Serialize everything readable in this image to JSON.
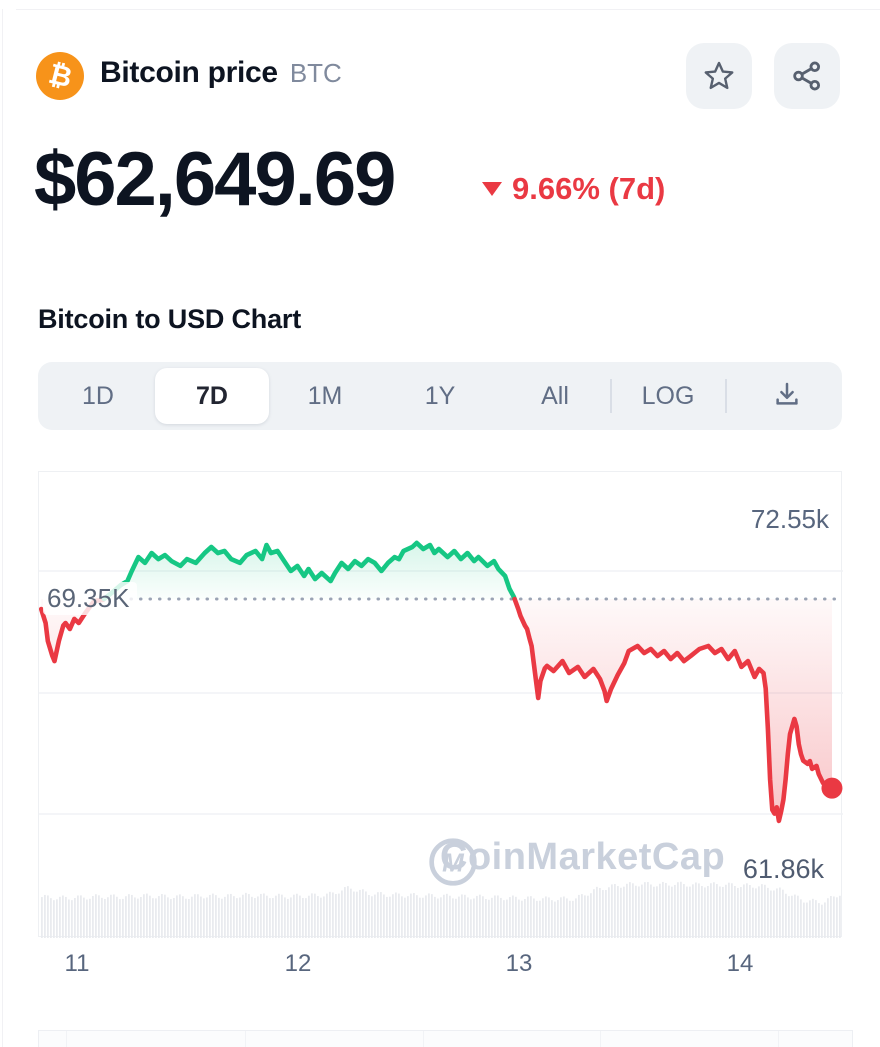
{
  "header": {
    "coin_name": "Bitcoin price",
    "coin_symbol": "BTC",
    "watchlist_icon": "star-outline",
    "share_icon": "share-nodes"
  },
  "price_section": {
    "price": "$62,649.69",
    "change_direction": "down",
    "change_percent": "9.66%",
    "change_period": "(7d)",
    "change_text": "9.66% (7d)",
    "change_color": "#ea3943"
  },
  "chart_section": {
    "title": "Bitcoin to USD Chart",
    "tabs": [
      {
        "label": "1D",
        "selected": false
      },
      {
        "label": "7D",
        "selected": true
      },
      {
        "label": "1M",
        "selected": false
      },
      {
        "label": "1Y",
        "selected": false
      },
      {
        "label": "All",
        "selected": false
      },
      {
        "label": "LOG",
        "selected": false
      }
    ],
    "download_icon": "download"
  },
  "chart_data": {
    "type": "line",
    "title": "Bitcoin to USD Chart (7D)",
    "x_label": "",
    "x_tick_labels": [
      "11",
      "12",
      "13",
      "14"
    ],
    "x_range_days": [
      10.83,
      14.47
    ],
    "y_unit": "USD (thousands)",
    "baseline": {
      "value_k": 69.35,
      "label": "69.35K"
    },
    "range_high": {
      "value_k": 72.55,
      "label": "72.55k"
    },
    "range_low": {
      "value_k": 61.86,
      "label": "61.86k"
    },
    "current_price_usd": 62649.69,
    "grid": "horizontal-only",
    "legend": "none",
    "colors": {
      "above_baseline": "#16c784",
      "below_baseline": "#ea3943",
      "volume_bar": "#e9ebef"
    },
    "watermark": "CoinMarketCap",
    "series": [
      {
        "name": "BTC/USD price (thousands)",
        "points": [
          [
            10.84,
            68.95
          ],
          [
            10.86,
            68.4
          ],
          [
            10.87,
            67.69
          ],
          [
            10.89,
            67.1
          ],
          [
            10.9,
            66.89
          ],
          [
            10.92,
            67.69
          ],
          [
            10.94,
            68.3
          ],
          [
            10.95,
            68.4
          ],
          [
            10.97,
            68.16
          ],
          [
            10.99,
            68.56
          ],
          [
            11.01,
            68.4
          ],
          [
            11.04,
            68.8
          ],
          [
            11.08,
            69.27
          ],
          [
            11.12,
            69.32
          ],
          [
            11.16,
            69.6
          ],
          [
            11.2,
            69.9
          ],
          [
            11.23,
            70.06
          ],
          [
            11.25,
            70.46
          ],
          [
            11.28,
            71.01
          ],
          [
            11.31,
            70.78
          ],
          [
            11.34,
            71.17
          ],
          [
            11.37,
            70.93
          ],
          [
            11.4,
            71.09
          ],
          [
            11.43,
            70.85
          ],
          [
            11.47,
            70.66
          ],
          [
            11.5,
            70.93
          ],
          [
            11.54,
            70.78
          ],
          [
            11.58,
            71.17
          ],
          [
            11.61,
            71.41
          ],
          [
            11.64,
            71.17
          ],
          [
            11.67,
            71.25
          ],
          [
            11.7,
            70.93
          ],
          [
            11.74,
            70.78
          ],
          [
            11.77,
            71.09
          ],
          [
            11.81,
            71.25
          ],
          [
            11.84,
            70.93
          ],
          [
            11.86,
            71.49
          ],
          [
            11.88,
            71.17
          ],
          [
            11.91,
            71.25
          ],
          [
            11.94,
            70.85
          ],
          [
            11.97,
            70.46
          ],
          [
            12.0,
            70.66
          ],
          [
            12.03,
            70.26
          ],
          [
            12.05,
            70.54
          ],
          [
            12.08,
            70.14
          ],
          [
            12.11,
            70.38
          ],
          [
            12.15,
            70.06
          ],
          [
            12.17,
            70.38
          ],
          [
            12.2,
            70.78
          ],
          [
            12.23,
            70.54
          ],
          [
            12.26,
            70.85
          ],
          [
            12.29,
            70.66
          ],
          [
            12.32,
            70.93
          ],
          [
            12.35,
            70.78
          ],
          [
            12.38,
            70.46
          ],
          [
            12.41,
            70.78
          ],
          [
            12.44,
            71.01
          ],
          [
            12.46,
            70.93
          ],
          [
            12.48,
            71.25
          ],
          [
            12.52,
            71.41
          ],
          [
            12.54,
            71.57
          ],
          [
            12.57,
            71.33
          ],
          [
            12.6,
            71.49
          ],
          [
            12.62,
            71.17
          ],
          [
            12.64,
            71.33
          ],
          [
            12.68,
            71.01
          ],
          [
            12.71,
            71.25
          ],
          [
            12.74,
            70.93
          ],
          [
            12.77,
            71.17
          ],
          [
            12.8,
            70.85
          ],
          [
            12.82,
            71.01
          ],
          [
            12.86,
            70.66
          ],
          [
            12.89,
            70.85
          ],
          [
            12.91,
            70.54
          ],
          [
            12.94,
            70.26
          ],
          [
            12.96,
            69.75
          ],
          [
            12.98,
            69.43
          ],
          [
            13.0,
            68.95
          ],
          [
            13.01,
            68.68
          ],
          [
            13.03,
            68.3
          ],
          [
            13.04,
            68.16
          ],
          [
            13.05,
            67.8
          ],
          [
            13.06,
            67.49
          ],
          [
            13.07,
            66.8
          ],
          [
            13.09,
            65.43
          ],
          [
            13.1,
            66.1
          ],
          [
            13.12,
            66.6
          ],
          [
            13.13,
            66.7
          ],
          [
            13.16,
            66.5
          ],
          [
            13.2,
            66.89
          ],
          [
            13.23,
            66.42
          ],
          [
            13.27,
            66.66
          ],
          [
            13.3,
            66.26
          ],
          [
            13.34,
            66.58
          ],
          [
            13.37,
            66.18
          ],
          [
            13.39,
            65.71
          ],
          [
            13.4,
            65.31
          ],
          [
            13.42,
            65.79
          ],
          [
            13.45,
            66.34
          ],
          [
            13.48,
            66.81
          ],
          [
            13.5,
            67.29
          ],
          [
            13.54,
            67.49
          ],
          [
            13.57,
            67.21
          ],
          [
            13.6,
            67.37
          ],
          [
            13.63,
            67.09
          ],
          [
            13.66,
            67.29
          ],
          [
            13.69,
            66.97
          ],
          [
            13.72,
            67.21
          ],
          [
            13.75,
            66.89
          ],
          [
            13.78,
            67.09
          ],
          [
            13.82,
            67.37
          ],
          [
            13.86,
            67.49
          ],
          [
            13.89,
            67.21
          ],
          [
            13.92,
            67.37
          ],
          [
            13.95,
            66.97
          ],
          [
            13.98,
            67.29
          ],
          [
            14.01,
            66.66
          ],
          [
            14.04,
            66.89
          ],
          [
            14.07,
            66.26
          ],
          [
            14.09,
            66.58
          ],
          [
            14.11,
            66.42
          ],
          [
            14.12,
            65.8
          ],
          [
            14.13,
            64.2
          ],
          [
            14.14,
            62.2
          ],
          [
            14.15,
            61.0
          ],
          [
            14.16,
            60.85
          ],
          [
            14.17,
            61.1
          ],
          [
            14.18,
            60.56
          ],
          [
            14.19,
            60.95
          ],
          [
            14.2,
            61.4
          ],
          [
            14.21,
            62.2
          ],
          [
            14.22,
            63.2
          ],
          [
            14.23,
            64.0
          ],
          [
            14.25,
            64.6
          ],
          [
            14.26,
            64.3
          ],
          [
            14.27,
            63.6
          ],
          [
            14.28,
            63.2
          ],
          [
            14.29,
            62.95
          ],
          [
            14.31,
            62.82
          ],
          [
            14.32,
            62.93
          ],
          [
            14.33,
            62.62
          ],
          [
            14.35,
            62.74
          ],
          [
            14.36,
            62.42
          ],
          [
            14.38,
            62.06
          ],
          [
            14.4,
            61.95
          ],
          [
            14.42,
            61.86
          ]
        ]
      }
    ],
    "volume_profile": {
      "description": "normalized trade-volume bar heights, left to right",
      "values": [
        0.76,
        0.74,
        0.75,
        0.77,
        0.76,
        0.78,
        0.77,
        0.76,
        0.78,
        0.77,
        0.79,
        0.78,
        0.77,
        0.78,
        0.8,
        0.93,
        0.82,
        0.8,
        0.79,
        0.78,
        0.77,
        0.76,
        0.75,
        0.74,
        0.73,
        0.72,
        0.73,
        0.9,
        0.97,
        1.0,
        0.99,
        1.0,
        0.98,
        0.99,
        0.97,
        0.96,
        0.88,
        0.7,
        0.66,
        0.86
      ]
    }
  }
}
